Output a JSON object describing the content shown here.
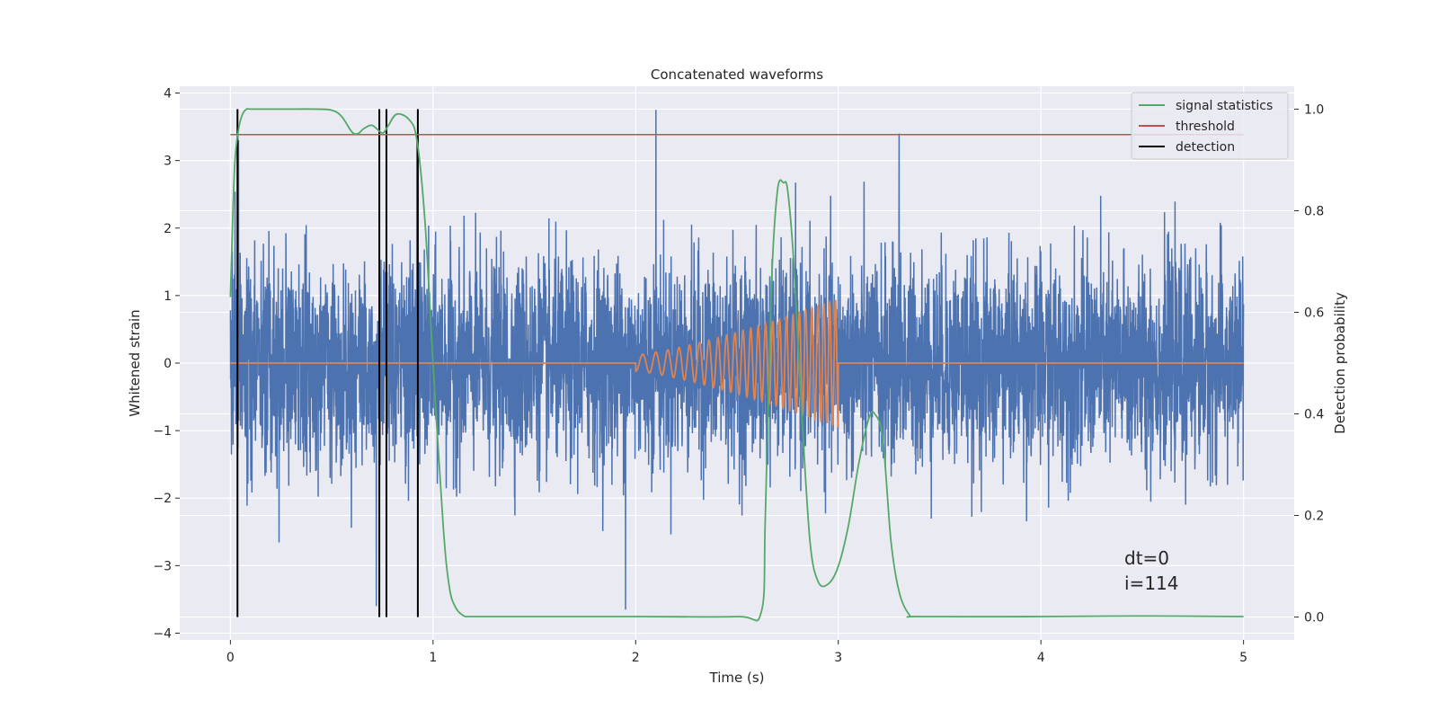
{
  "chart_data": {
    "type": "line",
    "title": "Concatenated waveforms",
    "xlabel": "Time (s)",
    "ylabel": "Whitened strain",
    "y2label": "Detection probability",
    "xlim": [
      -0.25,
      5.25
    ],
    "ylim": [
      -4.1,
      4.1
    ],
    "y2lim": [
      -0.045,
      1.045
    ],
    "x_ticks": [
      0,
      1,
      2,
      3,
      4,
      5
    ],
    "y_ticks": [
      -4,
      -3,
      -2,
      -1,
      0,
      1,
      2,
      3,
      4
    ],
    "y2_ticks": [
      0.0,
      0.2,
      0.4,
      0.6,
      0.8,
      1.0
    ],
    "y2_tick_labels": [
      "0.0",
      "0.2",
      "0.4",
      "0.6",
      "0.8",
      "1.0"
    ],
    "grid": true,
    "legend_position": "top-right",
    "colors": {
      "strain": "#4c72b0",
      "signal": "#dd8452",
      "statistics": "#55a868",
      "threshold": "#c44e52",
      "detection": "#000000",
      "background": "#eaeaf2"
    },
    "legend": [
      "signal statistics",
      "threshold",
      "detection"
    ],
    "series": [
      {
        "name": "signal statistics",
        "axis": "right",
        "x": [
          0.0,
          0.02,
          0.04,
          0.06,
          0.08,
          0.1,
          0.2,
          0.3,
          0.4,
          0.5,
          0.55,
          0.6,
          0.63,
          0.66,
          0.7,
          0.75,
          0.78,
          0.82,
          0.88,
          0.92,
          0.96,
          1.0,
          1.05,
          1.08,
          1.11,
          1.15,
          1.2,
          1.5,
          2.0,
          2.5,
          2.62,
          2.64,
          2.67,
          2.7,
          2.73,
          2.75,
          2.78,
          2.82,
          2.86,
          2.9,
          2.95,
          3.0,
          3.05,
          3.1,
          3.15,
          3.18,
          3.22,
          3.26,
          3.3,
          3.35,
          3.4,
          4.0,
          4.5,
          5.0
        ],
        "values": [
          0.63,
          0.88,
          0.96,
          0.99,
          1.0,
          1.0,
          1.0,
          1.0,
          1.0,
          0.998,
          0.985,
          0.955,
          0.952,
          0.962,
          0.968,
          0.953,
          0.968,
          0.99,
          0.98,
          0.94,
          0.78,
          0.5,
          0.18,
          0.06,
          0.02,
          0.003,
          0.001,
          0.001,
          0.001,
          0.001,
          0.01,
          0.2,
          0.65,
          0.84,
          0.855,
          0.84,
          0.7,
          0.4,
          0.15,
          0.07,
          0.065,
          0.1,
          0.18,
          0.3,
          0.39,
          0.4,
          0.35,
          0.15,
          0.05,
          0.005,
          0.001,
          0.001,
          0.002,
          0.001
        ]
      },
      {
        "name": "threshold",
        "axis": "right",
        "x": [
          0.0,
          5.0
        ],
        "values": [
          0.95,
          0.95
        ]
      }
    ],
    "detections_x": [
      0.035,
      0.735,
      0.77,
      0.925
    ],
    "strain": {
      "axis": "left",
      "x_range": [
        0,
        5
      ],
      "sigma": 0.75,
      "notable_points": [
        [
          0.04,
          3.3
        ],
        [
          2.1,
          3.75
        ],
        [
          1.95,
          -3.65
        ],
        [
          3.3,
          3.4
        ],
        [
          0.92,
          3.4
        ],
        [
          0.72,
          -3.6
        ],
        [
          0.77,
          -3.65
        ]
      ]
    },
    "chirp": {
      "axis": "left",
      "x_start": 2.0,
      "x_end": 3.0,
      "amp_start": 0.12,
      "amp_end": 0.95
    },
    "annotations": [
      "dt=0",
      "i=114"
    ]
  }
}
